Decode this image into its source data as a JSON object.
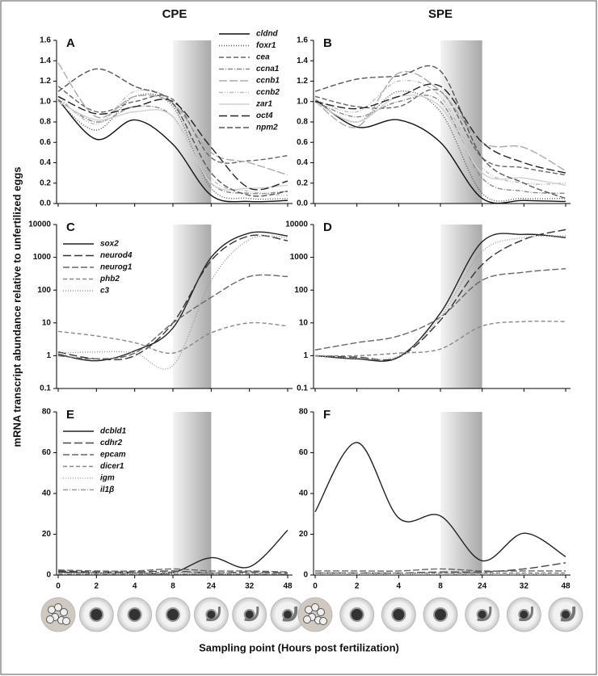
{
  "column_titles": [
    "CPE",
    "SPE"
  ],
  "y_axis_label": "mRNA transcript abundance relative to unfertilized eggs",
  "x_axis_label": "Sampling point (Hours post fertilization)",
  "chart_data": [
    {
      "type": "line",
      "panel": "A",
      "legend": "upper right",
      "highlight": [
        8,
        24
      ],
      "ylim": [
        0,
        1.6
      ],
      "yticks": [
        {
          "value": 0,
          "label": "0.0"
        },
        0.2,
        0.4,
        0.6,
        0.8,
        {
          "value": 1,
          "label": "1.0"
        },
        1.2,
        1.4,
        1.6
      ],
      "series": [
        {
          "name": "cldnd",
          "color": "#111111",
          "dash": "",
          "values": [
            1.02,
            0.63,
            0.82,
            0.58,
            0.08,
            0.02,
            0.03
          ]
        },
        {
          "name": "foxr1",
          "color": "#555555",
          "dash": "1 2",
          "values": [
            1.0,
            0.72,
            1.05,
            0.95,
            0.15,
            0.05,
            0.05
          ]
        },
        {
          "name": "cea",
          "color": "#666666",
          "dash": "6 3",
          "values": [
            1.15,
            0.9,
            1.0,
            1.02,
            0.45,
            0.42,
            0.47
          ]
        },
        {
          "name": "ccna1",
          "color": "#888888",
          "dash": "6 2 1 2",
          "values": [
            1.02,
            0.8,
            0.95,
            0.85,
            0.2,
            0.1,
            0.12
          ]
        },
        {
          "name": "ccnb1",
          "color": "#aaaaaa",
          "dash": "10 3",
          "values": [
            1.38,
            0.85,
            1.05,
            0.98,
            0.5,
            0.4,
            0.28
          ]
        },
        {
          "name": "ccnb2",
          "color": "#bbbbbb",
          "dash": "5 2 1 2 1 2",
          "values": [
            1.05,
            0.78,
            1.1,
            0.98,
            0.25,
            0.12,
            0.08
          ]
        },
        {
          "name": "zar1",
          "color": "#d0d0d0",
          "dash": "",
          "values": [
            1.0,
            0.82,
            0.9,
            0.85,
            0.2,
            0.15,
            0.18
          ]
        },
        {
          "name": "oct4",
          "color": "#222222",
          "dash": "10 4",
          "values": [
            1.05,
            0.88,
            0.95,
            1.0,
            0.55,
            0.15,
            0.22
          ]
        },
        {
          "name": "npm2",
          "color": "#555555",
          "dash": "7 3",
          "values": [
            1.1,
            1.32,
            1.15,
            0.98,
            0.3,
            0.08,
            0.12
          ]
        }
      ]
    },
    {
      "type": "line",
      "panel": "B",
      "highlight": [
        8,
        24
      ],
      "ylim": [
        0,
        1.6
      ],
      "yticks": [
        {
          "value": 0,
          "label": "0.0"
        },
        0.2,
        0.4,
        0.6,
        0.8,
        {
          "value": 1,
          "label": "1.0"
        },
        1.2,
        1.4,
        1.6
      ],
      "series": [
        {
          "color": "#111111",
          "dash": "",
          "values": [
            1.02,
            0.75,
            0.82,
            0.6,
            0.05,
            0.03,
            0.02
          ]
        },
        {
          "color": "#555555",
          "dash": "1 2",
          "values": [
            1.0,
            0.8,
            1.1,
            0.9,
            0.1,
            0.05,
            0.05
          ]
        },
        {
          "color": "#666666",
          "dash": "6 3",
          "values": [
            1.05,
            0.95,
            0.95,
            1.1,
            0.45,
            0.35,
            0.28
          ]
        },
        {
          "color": "#888888",
          "dash": "6 2 1 2",
          "values": [
            1.0,
            0.85,
            1.0,
            1.0,
            0.25,
            0.12,
            0.1
          ]
        },
        {
          "color": "#aaaaaa",
          "dash": "10 3",
          "values": [
            1.0,
            0.75,
            1.28,
            1.1,
            0.6,
            0.55,
            0.32
          ]
        },
        {
          "color": "#bbbbbb",
          "dash": "5 2 1 2 1 2",
          "values": [
            1.02,
            0.9,
            1.2,
            1.05,
            0.35,
            0.2,
            0.2
          ]
        },
        {
          "color": "#d0d0d0",
          "dash": "",
          "values": [
            1.0,
            0.8,
            1.05,
            0.95,
            0.3,
            0.25,
            0.18
          ]
        },
        {
          "color": "#222222",
          "dash": "10 4",
          "values": [
            1.0,
            0.93,
            1.05,
            1.15,
            0.6,
            0.4,
            0.3
          ]
        },
        {
          "color": "#555555",
          "dash": "7 3",
          "values": [
            1.1,
            1.22,
            1.25,
            1.3,
            0.45,
            0.2,
            0.05
          ]
        }
      ]
    },
    {
      "type": "line",
      "panel": "C",
      "legend": "upper left",
      "highlight": [
        8,
        24
      ],
      "log_scale": true,
      "ylim": [
        0.1,
        10000
      ],
      "yticks": [
        0.1,
        1,
        10,
        100,
        1000,
        10000
      ],
      "series": [
        {
          "name": "sox2",
          "color": "#222222",
          "dash": "",
          "values": [
            1.1,
            0.7,
            1.4,
            7,
            1000,
            5500,
            4500
          ]
        },
        {
          "name": "neurod4",
          "color": "#333333",
          "dash": "10 4",
          "values": [
            1.3,
            0.8,
            1.0,
            10,
            800,
            4500,
            3200
          ]
        },
        {
          "name": "neurog1",
          "color": "#666666",
          "dash": "8 3",
          "values": [
            1.0,
            0.8,
            1.2,
            10,
            60,
            260,
            260
          ]
        },
        {
          "name": "phb2",
          "color": "#888888",
          "dash": "5 3",
          "values": [
            5.5,
            4,
            2.5,
            1.2,
            5,
            10,
            8
          ]
        },
        {
          "name": "c3",
          "color": "#999999",
          "dash": "1 2",
          "values": [
            1.2,
            1.3,
            1.2,
            0.5,
            200,
            3500,
            4000
          ]
        }
      ]
    },
    {
      "type": "line",
      "panel": "D",
      "highlight": [
        8,
        24
      ],
      "log_scale": true,
      "ylim": [
        0.1,
        10000
      ],
      "yticks": [
        0.1,
        1,
        10,
        100,
        1000,
        10000
      ],
      "series": [
        {
          "color": "#222222",
          "dash": "",
          "values": [
            1.0,
            0.8,
            0.9,
            20,
            3000,
            5000,
            4000
          ]
        },
        {
          "color": "#333333",
          "dash": "10 4",
          "values": [
            1.0,
            0.9,
            0.9,
            12,
            600,
            3500,
            7000
          ]
        },
        {
          "color": "#666666",
          "dash": "8 3",
          "values": [
            1.5,
            2.5,
            4,
            15,
            200,
            350,
            450
          ]
        },
        {
          "color": "#888888",
          "dash": "5 3",
          "values": [
            1.0,
            1.0,
            1.2,
            1.6,
            8,
            11,
            11
          ]
        },
        {
          "color": "#999999",
          "dash": "1 2",
          "values": [
            1.0,
            0.85,
            1.0,
            15,
            1500,
            4000,
            4500
          ]
        }
      ]
    },
    {
      "type": "line",
      "panel": "E",
      "legend": "upper left",
      "highlight": [
        8,
        24
      ],
      "categories": [
        0,
        2,
        4,
        8,
        24,
        32,
        48
      ],
      "ylim": [
        0,
        80
      ],
      "yticks": [
        0,
        20,
        40,
        60,
        80
      ],
      "series": [
        {
          "name": "dcbld1",
          "color": "#222222",
          "dash": "",
          "values": [
            1.5,
            1.0,
            1.0,
            1.2,
            8.5,
            4,
            22
          ]
        },
        {
          "name": "cdhr2",
          "color": "#444444",
          "dash": "10 4",
          "values": [
            2,
            1.5,
            1.5,
            2,
            1.0,
            1.5,
            1.0
          ]
        },
        {
          "name": "epcam",
          "color": "#666666",
          "dash": "8 3",
          "values": [
            2.5,
            2,
            2,
            3,
            2,
            2,
            1.5
          ]
        },
        {
          "name": "dicer1",
          "color": "#888888",
          "dash": "5 3",
          "values": [
            1.0,
            1,
            1,
            1.5,
            1,
            1,
            0.5
          ]
        },
        {
          "name": "igm",
          "color": "#aaaaaa",
          "dash": "1 2",
          "values": [
            1.0,
            1,
            1,
            1,
            0.5,
            0.5,
            0.5
          ]
        },
        {
          "name": "il1β",
          "color": "#999999",
          "dash": "6 2 1 2",
          "values": [
            0.5,
            0.5,
            0.5,
            0.5,
            0.5,
            0.5,
            0.5
          ]
        }
      ]
    },
    {
      "type": "line",
      "panel": "F",
      "highlight": [
        8,
        24
      ],
      "categories": [
        0,
        2,
        4,
        8,
        24,
        32,
        48
      ],
      "ylim": [
        0,
        80
      ],
      "yticks": [
        0,
        20,
        40,
        60,
        80
      ],
      "series": [
        {
          "color": "#222222",
          "dash": "",
          "values": [
            31,
            65,
            28,
            29,
            7,
            20.5,
            9
          ]
        },
        {
          "color": "#444444",
          "dash": "10 4",
          "values": [
            1,
            1,
            1,
            1.5,
            1.5,
            3,
            6
          ]
        },
        {
          "color": "#666666",
          "dash": "8 3",
          "values": [
            2,
            2,
            2,
            3,
            2,
            2,
            2
          ]
        },
        {
          "color": "#888888",
          "dash": "5 3",
          "values": [
            1,
            1,
            1,
            1,
            1,
            1,
            1
          ]
        },
        {
          "color": "#aaaaaa",
          "dash": "1 2",
          "values": [
            0.5,
            0.5,
            0.5,
            0.5,
            0.5,
            0.5,
            0.5
          ]
        },
        {
          "color": "#999999",
          "dash": "6 2 1 2",
          "values": [
            0.3,
            0.3,
            0.3,
            0.3,
            0.3,
            0.3,
            0.3
          ]
        }
      ]
    }
  ]
}
